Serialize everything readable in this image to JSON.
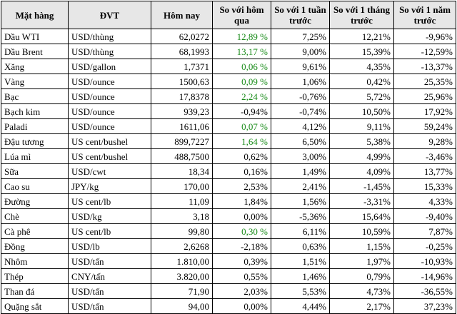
{
  "colors": {
    "header_bg": "#e7e7e7",
    "positive_green": "#1a8c1a",
    "text": "#000000",
    "border": "#000000"
  },
  "headers": {
    "mat_hang": "Mặt hàng",
    "dvt": "ĐVT",
    "hom_nay": "Hôm nay",
    "so_voi_hom_qua": "So với hôm qua",
    "so_voi_tuan": "So với 1 tuần trước",
    "so_voi_thang": "So với 1 tháng trước",
    "so_voi_nam": "So với 1 năm trước"
  },
  "rows": [
    {
      "name": "Dầu WTI",
      "unit": "USD/thùng",
      "today": "62,0272",
      "vs_yesterday": "12,89 %",
      "vs_week": "7,25%",
      "vs_month": "12,21%",
      "vs_year": "-9,96%",
      "yesterday_green": true
    },
    {
      "name": "Dầu Brent",
      "unit": "USD/thùng",
      "today": "68,1993",
      "vs_yesterday": "13,17 %",
      "vs_week": "9,00%",
      "vs_month": "15,39%",
      "vs_year": "-12,59%",
      "yesterday_green": true
    },
    {
      "name": "Xăng",
      "unit": "USD/gallon",
      "today": "1,7371",
      "vs_yesterday": "0,06 %",
      "vs_week": "9,61%",
      "vs_month": "4,35%",
      "vs_year": "-13,37%",
      "yesterday_green": true
    },
    {
      "name": "Vàng",
      "unit": "USD/ounce",
      "today": "1500,63",
      "vs_yesterday": "0,09 %",
      "vs_week": "1,06%",
      "vs_month": "0,42%",
      "vs_year": "25,35%",
      "yesterday_green": true
    },
    {
      "name": "Bạc",
      "unit": "USD/ounce",
      "today": "17,8378",
      "vs_yesterday": "2,24 %",
      "vs_week": "-0,76%",
      "vs_month": "5,72%",
      "vs_year": "25,96%",
      "yesterday_green": true
    },
    {
      "name": "Bạch kim",
      "unit": "USD/ounce",
      "today": "939,23",
      "vs_yesterday": "-0,94%",
      "vs_week": "-0,74%",
      "vs_month": "10,50%",
      "vs_year": "17,92%",
      "yesterday_green": false
    },
    {
      "name": "Paladi",
      "unit": "USD/ounce",
      "today": "1611,06",
      "vs_yesterday": "0,07 %",
      "vs_week": "4,12%",
      "vs_month": "9,11%",
      "vs_year": "59,24%",
      "yesterday_green": true
    },
    {
      "name": "Đậu tương",
      "unit": "US cent/bushel",
      "today": "899,7227",
      "vs_yesterday": "1,64 %",
      "vs_week": "6,50%",
      "vs_month": "5,38%",
      "vs_year": "9,28%",
      "yesterday_green": true
    },
    {
      "name": "Lúa mì",
      "unit": "US cent/bushel",
      "today": "488,7500",
      "vs_yesterday": "0,62%",
      "vs_week": "3,00%",
      "vs_month": "4,99%",
      "vs_year": "-3,46%",
      "yesterday_green": false
    },
    {
      "name": "Sữa",
      "unit": "USD/cwt",
      "today": "18,34",
      "vs_yesterday": "0,16%",
      "vs_week": "1,49%",
      "vs_month": "4,09%",
      "vs_year": "13,77%",
      "yesterday_green": false
    },
    {
      "name": "Cao su",
      "unit": "JPY/kg",
      "today": "170,00",
      "vs_yesterday": "2,53%",
      "vs_week": "2,41%",
      "vs_month": "-1,45%",
      "vs_year": "15,33%",
      "yesterday_green": false
    },
    {
      "name": "Đường",
      "unit": "US cent/lb",
      "today": "11,09",
      "vs_yesterday": "1,84%",
      "vs_week": "1,56%",
      "vs_month": "-3,31%",
      "vs_year": "4,33%",
      "yesterday_green": false
    },
    {
      "name": "Chè",
      "unit": "USD/kg",
      "today": "3,18",
      "vs_yesterday": "0,00%",
      "vs_week": "-5,36%",
      "vs_month": "15,64%",
      "vs_year": "-9,40%",
      "yesterday_green": false
    },
    {
      "name": "Cà phê",
      "unit": "US cent/lb",
      "today": "99,80",
      "vs_yesterday": "0,30 %",
      "vs_week": "6,11%",
      "vs_month": "10,59%",
      "vs_year": "7,87%",
      "yesterday_green": true
    },
    {
      "name": "Đồng",
      "unit": "USD/lb",
      "today": "2,6268",
      "vs_yesterday": "-2,18%",
      "vs_week": "0,63%",
      "vs_month": "1,15%",
      "vs_year": "-0,25%",
      "yesterday_green": false
    },
    {
      "name": "Nhôm",
      "unit": "USD/tấn",
      "today": "1.810,00",
      "vs_yesterday": "0,39%",
      "vs_week": "1,51%",
      "vs_month": "1,97%",
      "vs_year": "-10,93%",
      "yesterday_green": false
    },
    {
      "name": "Thép",
      "unit": "CNY/tấn",
      "today": "3.820,00",
      "vs_yesterday": "0,55%",
      "vs_week": "1,46%",
      "vs_month": "0,79%",
      "vs_year": "-14,96%",
      "yesterday_green": false
    },
    {
      "name": "Than đá",
      "unit": "USD/tấn",
      "today": "71,90",
      "vs_yesterday": "2,03%",
      "vs_week": "5,53%",
      "vs_month": "4,73%",
      "vs_year": "-36,55%",
      "yesterday_green": false
    },
    {
      "name": "Quặng sắt",
      "unit": "USD/tấn",
      "today": "94,00",
      "vs_yesterday": "0,00%",
      "vs_week": "4,44%",
      "vs_month": "2,17%",
      "vs_year": "37,23%",
      "yesterday_green": false
    }
  ]
}
